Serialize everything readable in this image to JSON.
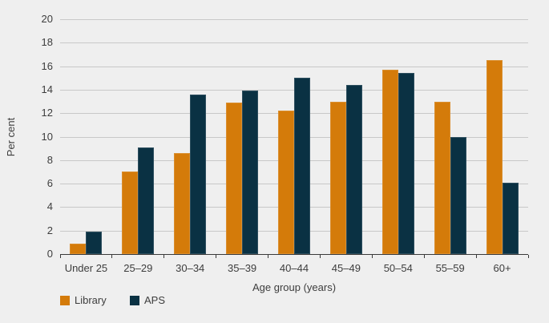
{
  "chart_data": {
    "type": "bar",
    "title": "",
    "categories": [
      "Under 25",
      "25–29",
      "30–34",
      "35–39",
      "40–44",
      "45–49",
      "50–54",
      "55–59",
      "60+"
    ],
    "series": [
      {
        "name": "Library",
        "color": "#d47b0a",
        "values": [
          0.9,
          7.0,
          8.6,
          12.9,
          12.2,
          13.0,
          15.7,
          13.0,
          16.5
        ]
      },
      {
        "name": "APS",
        "color": "#0a3143",
        "values": [
          1.9,
          9.1,
          13.6,
          13.9,
          15.0,
          14.4,
          15.4,
          10.0,
          6.1
        ]
      }
    ],
    "xlabel": "Age group (years)",
    "ylabel": "Per cent",
    "ylim": [
      0,
      20
    ],
    "yticks": [
      0,
      2,
      4,
      6,
      8,
      10,
      12,
      14,
      16,
      18,
      20
    ],
    "grid": true,
    "legend_position": "bottom-left"
  },
  "colors": {
    "background": "#efefef",
    "gridline": "#c8c8c8",
    "axis": "#3a3a3a",
    "text": "#3d3d3d"
  }
}
